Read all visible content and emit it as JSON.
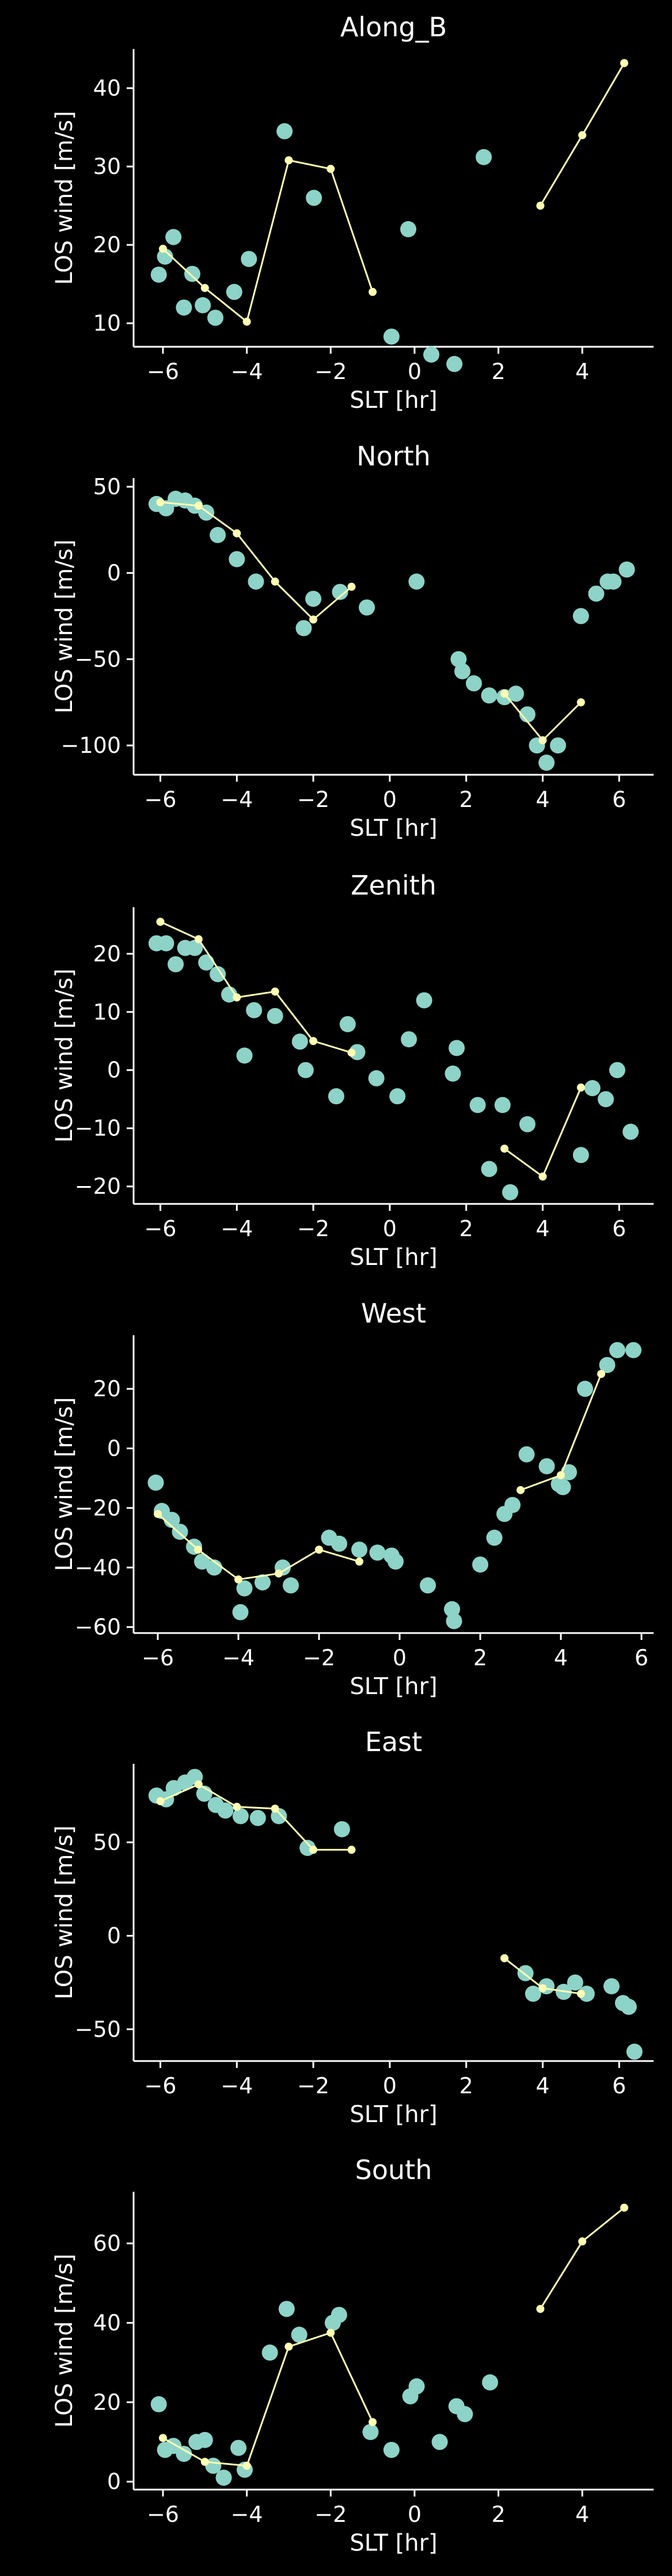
{
  "colors": {
    "background": "#000000",
    "axis": "#ffffff",
    "text": "#ffffff",
    "scatter": "#8dd3c7",
    "line": "#ffffb3"
  },
  "chart_data": [
    {
      "type": "scatter",
      "title": "Along_B",
      "xlabel": "SLT [hr]",
      "ylabel": "LOS wind [m/s]",
      "xlim": [
        -6.7,
        5.7
      ],
      "ylim": [
        7,
        45
      ],
      "xticks": [
        -6,
        -4,
        -2,
        0,
        2,
        4
      ],
      "yticks": [
        10,
        20,
        30,
        40
      ],
      "grid": false,
      "series": [
        {
          "kind": "scatter",
          "points": [
            [
              -6.1,
              16.2
            ],
            [
              -5.95,
              18.5
            ],
            [
              -5.75,
              21
            ],
            [
              -5.5,
              12
            ],
            [
              -5.3,
              16.3
            ],
            [
              -5.05,
              12.3
            ],
            [
              -4.75,
              10.7
            ],
            [
              -4.3,
              14
            ],
            [
              -3.95,
              18.2
            ],
            [
              -3.1,
              34.5
            ],
            [
              -2.4,
              26
            ],
            [
              -0.55,
              8.3
            ],
            [
              -0.15,
              22
            ],
            [
              0.4,
              6
            ],
            [
              0.95,
              4.8
            ],
            [
              1.65,
              31.2
            ]
          ]
        },
        {
          "kind": "line",
          "points": [
            [
              -6,
              19.5
            ],
            [
              -5,
              14.5
            ],
            [
              -4,
              10.2
            ],
            [
              -3,
              30.8
            ],
            [
              -2,
              29.7
            ],
            [
              -1,
              14
            ],
            [
              null,
              null
            ],
            [
              3,
              25
            ],
            [
              4,
              34
            ],
            [
              5,
              43.2
            ]
          ]
        }
      ]
    },
    {
      "type": "scatter",
      "title": "North",
      "xlabel": "SLT [hr]",
      "ylabel": "LOS wind [m/s]",
      "xlim": [
        -6.7,
        6.9
      ],
      "ylim": [
        -117,
        55
      ],
      "xticks": [
        -6,
        -4,
        -2,
        0,
        2,
        4,
        6
      ],
      "yticks": [
        50,
        0,
        -50,
        -100
      ],
      "grid": false,
      "series": [
        {
          "kind": "scatter",
          "points": [
            [
              -6.1,
              40
            ],
            [
              -5.85,
              37.5
            ],
            [
              -5.6,
              43
            ],
            [
              -5.35,
              42
            ],
            [
              -5.1,
              39
            ],
            [
              -4.8,
              35
            ],
            [
              -4.5,
              22
            ],
            [
              -4,
              8
            ],
            [
              -3.5,
              -5
            ],
            [
              -2.25,
              -32
            ],
            [
              -2.0,
              -15
            ],
            [
              -1.3,
              -11
            ],
            [
              -0.6,
              -20
            ],
            [
              0.7,
              -5
            ],
            [
              1.8,
              -50
            ],
            [
              1.9,
              -57
            ],
            [
              2.2,
              -64
            ],
            [
              2.6,
              -71
            ],
            [
              3.0,
              -72
            ],
            [
              3.3,
              -70
            ],
            [
              3.6,
              -82
            ],
            [
              3.85,
              -100
            ],
            [
              4.1,
              -110
            ],
            [
              4.4,
              -100
            ],
            [
              5.0,
              -25
            ],
            [
              5.4,
              -12
            ],
            [
              5.7,
              -5
            ],
            [
              5.85,
              -5
            ],
            [
              6.2,
              2
            ]
          ]
        },
        {
          "kind": "line",
          "points": [
            [
              -6,
              41
            ],
            [
              -5,
              39
            ],
            [
              -4,
              23
            ],
            [
              -3,
              -5
            ],
            [
              -2,
              -27
            ],
            [
              -1,
              -8
            ],
            [
              null,
              null
            ],
            [
              3,
              -70
            ],
            [
              4,
              -97
            ],
            [
              5,
              -75
            ]
          ]
        }
      ]
    },
    {
      "type": "scatter",
      "title": "Zenith",
      "xlabel": "SLT [hr]",
      "ylabel": "LOS wind [m/s]",
      "xlim": [
        -6.7,
        6.9
      ],
      "ylim": [
        -23,
        28
      ],
      "xticks": [
        -6,
        -4,
        -2,
        0,
        2,
        4,
        6
      ],
      "yticks": [
        20,
        10,
        0,
        -10,
        -20
      ],
      "grid": false,
      "series": [
        {
          "kind": "scatter",
          "points": [
            [
              -6.1,
              21.8
            ],
            [
              -5.85,
              21.8
            ],
            [
              -5.6,
              18.2
            ],
            [
              -5.35,
              21
            ],
            [
              -5.1,
              21
            ],
            [
              -4.8,
              18.5
            ],
            [
              -4.5,
              16.5
            ],
            [
              -4.2,
              13
            ],
            [
              -3.8,
              2.5
            ],
            [
              -3.55,
              10.3
            ],
            [
              -3.0,
              9.3
            ],
            [
              -2.35,
              4.9
            ],
            [
              -2.2,
              0
            ],
            [
              -1.4,
              -4.5
            ],
            [
              -1.1,
              7.9
            ],
            [
              -0.85,
              3.1
            ],
            [
              -0.35,
              -1.4
            ],
            [
              0.2,
              -4.5
            ],
            [
              0.5,
              5.3
            ],
            [
              0.9,
              12
            ],
            [
              1.65,
              -0.6
            ],
            [
              1.75,
              3.8
            ],
            [
              2.3,
              -6
            ],
            [
              2.6,
              -17
            ],
            [
              2.95,
              -6
            ],
            [
              3.15,
              -21
            ],
            [
              3.6,
              -9.3
            ],
            [
              5.0,
              -14.6
            ],
            [
              5.3,
              -3.1
            ],
            [
              5.65,
              -5
            ],
            [
              5.95,
              0
            ],
            [
              6.3,
              -10.6
            ]
          ]
        },
        {
          "kind": "line",
          "points": [
            [
              -6,
              25.5
            ],
            [
              -5,
              22.5
            ],
            [
              -4,
              12.5
            ],
            [
              -3,
              13.5
            ],
            [
              -2,
              5
            ],
            [
              -1,
              3
            ],
            [
              null,
              null
            ],
            [
              3,
              -13.5
            ],
            [
              4,
              -18.3
            ],
            [
              5,
              -3
            ]
          ]
        }
      ]
    },
    {
      "type": "scatter",
      "title": "West",
      "xlabel": "SLT [hr]",
      "ylabel": "LOS wind [m/s]",
      "xlim": [
        -6.6,
        6.3
      ],
      "ylim": [
        -62,
        38
      ],
      "xticks": [
        -6,
        -4,
        -2,
        0,
        2,
        4,
        6
      ],
      "yticks": [
        20,
        0,
        -20,
        -40,
        -60
      ],
      "grid": false,
      "series": [
        {
          "kind": "scatter",
          "points": [
            [
              -6.05,
              -11.5
            ],
            [
              -5.9,
              -21
            ],
            [
              -5.65,
              -24
            ],
            [
              -5.45,
              -28
            ],
            [
              -5.1,
              -33
            ],
            [
              -4.9,
              -38
            ],
            [
              -4.6,
              -40
            ],
            [
              -3.95,
              -55
            ],
            [
              -3.85,
              -47
            ],
            [
              -3.4,
              -45
            ],
            [
              -2.9,
              -40
            ],
            [
              -2.7,
              -46
            ],
            [
              -1.75,
              -30
            ],
            [
              -1.5,
              -32
            ],
            [
              -1.0,
              -34
            ],
            [
              -0.55,
              -35
            ],
            [
              -0.2,
              -36
            ],
            [
              -0.1,
              -38
            ],
            [
              0.7,
              -46
            ],
            [
              1.3,
              -54
            ],
            [
              1.35,
              -58
            ],
            [
              2.0,
              -39
            ],
            [
              2.35,
              -30
            ],
            [
              2.6,
              -22
            ],
            [
              2.8,
              -19
            ],
            [
              3.15,
              -2
            ],
            [
              3.65,
              -6
            ],
            [
              3.95,
              -12
            ],
            [
              4.05,
              -13
            ],
            [
              4.2,
              -8
            ],
            [
              4.6,
              20
            ],
            [
              5.15,
              28
            ],
            [
              5.4,
              33
            ],
            [
              5.8,
              33
            ]
          ]
        },
        {
          "kind": "line",
          "points": [
            [
              -6,
              -22
            ],
            [
              -5,
              -34
            ],
            [
              -4,
              -44
            ],
            [
              -3,
              -42
            ],
            [
              -2,
              -34
            ],
            [
              -1,
              -38
            ],
            [
              null,
              null
            ],
            [
              3,
              -14
            ],
            [
              4,
              -9
            ],
            [
              5,
              25
            ]
          ]
        }
      ]
    },
    {
      "type": "scatter",
      "title": "East",
      "xlabel": "SLT [hr]",
      "ylabel": "LOS wind [m/s]",
      "xlim": [
        -6.7,
        6.9
      ],
      "ylim": [
        -67,
        92
      ],
      "xticks": [
        -6,
        -4,
        -2,
        0,
        2,
        4,
        6
      ],
      "yticks": [
        50,
        0,
        -50
      ],
      "grid": false,
      "series": [
        {
          "kind": "scatter",
          "points": [
            [
              -6.1,
              75
            ],
            [
              -5.85,
              73
            ],
            [
              -5.65,
              79
            ],
            [
              -5.35,
              82
            ],
            [
              -5.1,
              85
            ],
            [
              -4.85,
              76
            ],
            [
              -4.55,
              70
            ],
            [
              -4.3,
              67
            ],
            [
              -3.9,
              64
            ],
            [
              -3.45,
              63
            ],
            [
              -2.9,
              64
            ],
            [
              -2.15,
              47
            ],
            [
              -1.25,
              57
            ],
            [
              3.55,
              -20
            ],
            [
              3.75,
              -31
            ],
            [
              4.1,
              -27
            ],
            [
              4.55,
              -30
            ],
            [
              4.85,
              -25
            ],
            [
              5.15,
              -31
            ],
            [
              5.8,
              -27
            ],
            [
              6.1,
              -36
            ],
            [
              6.25,
              -38
            ],
            [
              6.4,
              -62
            ]
          ]
        },
        {
          "kind": "line",
          "points": [
            [
              -6,
              72
            ],
            [
              -5,
              81
            ],
            [
              -4,
              69
            ],
            [
              -3,
              68
            ],
            [
              -2,
              46
            ],
            [
              -1,
              46
            ],
            [
              null,
              null
            ],
            [
              3,
              -12
            ],
            [
              4,
              -28
            ],
            [
              5,
              -31
            ]
          ]
        }
      ]
    },
    {
      "type": "scatter",
      "title": "South",
      "xlabel": "SLT [hr]",
      "ylabel": "LOS wind [m/s]",
      "xlim": [
        -6.7,
        5.7
      ],
      "ylim": [
        -2,
        73
      ],
      "xticks": [
        -6,
        -4,
        -2,
        0,
        2,
        4
      ],
      "yticks": [
        0,
        20,
        40,
        60
      ],
      "grid": false,
      "series": [
        {
          "kind": "scatter",
          "points": [
            [
              -6.1,
              19.5
            ],
            [
              -5.95,
              8
            ],
            [
              -5.75,
              9
            ],
            [
              -5.5,
              7
            ],
            [
              -5.2,
              10
            ],
            [
              -5.0,
              10.5
            ],
            [
              -4.8,
              4
            ],
            [
              -4.55,
              1
            ],
            [
              -4.2,
              8.5
            ],
            [
              -4.05,
              3
            ],
            [
              -3.45,
              32.5
            ],
            [
              -3.05,
              43.5
            ],
            [
              -2.75,
              37
            ],
            [
              -1.95,
              40
            ],
            [
              -1.8,
              42
            ],
            [
              -1.05,
              12.5
            ],
            [
              -0.55,
              8
            ],
            [
              -0.1,
              21.5
            ],
            [
              0.05,
              24
            ],
            [
              0.6,
              10
            ],
            [
              1.0,
              19
            ],
            [
              1.2,
              17
            ],
            [
              1.8,
              25
            ]
          ]
        },
        {
          "kind": "line",
          "points": [
            [
              -6,
              11
            ],
            [
              -5,
              5
            ],
            [
              -4,
              4
            ],
            [
              -3,
              34
            ],
            [
              -2,
              37.5
            ],
            [
              -1,
              15
            ],
            [
              null,
              null
            ],
            [
              3,
              43.5
            ],
            [
              4,
              60.5
            ],
            [
              5,
              69
            ]
          ]
        }
      ]
    }
  ]
}
